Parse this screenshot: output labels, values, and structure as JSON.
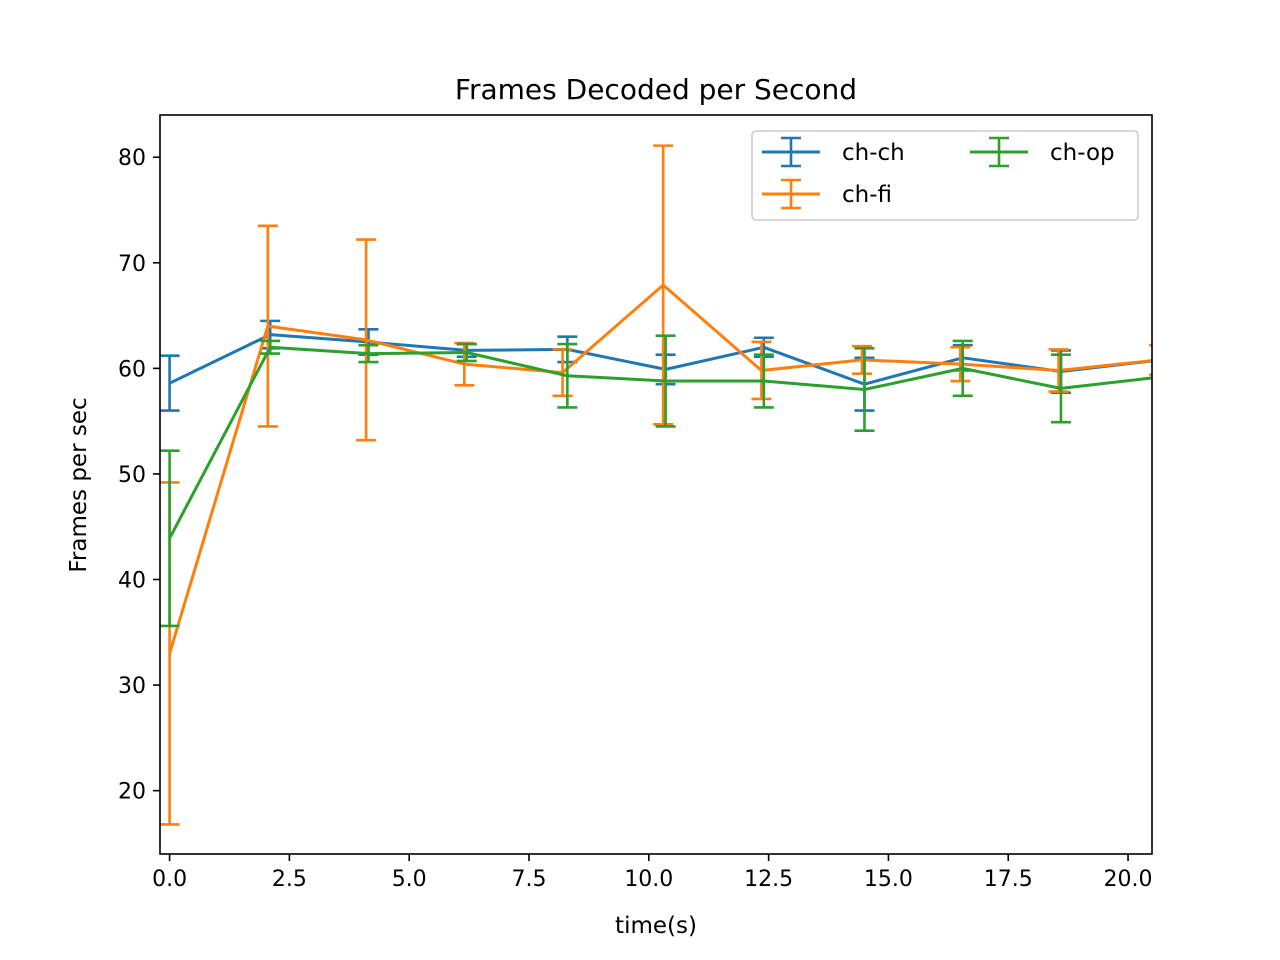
{
  "chart_data": {
    "type": "line",
    "title": "Frames Decoded per Second",
    "xlabel": "time(s)",
    "ylabel": "Frames per sec",
    "xlim": [
      -0.2,
      20.5
    ],
    "ylim": [
      14,
      84
    ],
    "xticks": [
      0.0,
      2.5,
      5.0,
      7.5,
      10.0,
      12.5,
      15.0,
      17.5,
      20.0
    ],
    "xtick_labels": [
      "0.0",
      "2.5",
      "5.0",
      "7.5",
      "10.0",
      "12.5",
      "15.0",
      "17.5",
      "20.0"
    ],
    "yticks": [
      20,
      30,
      40,
      50,
      60,
      70,
      80
    ],
    "ytick_labels": [
      "20",
      "30",
      "40",
      "50",
      "60",
      "70",
      "80"
    ],
    "grid": false,
    "legend": {
      "placement": "top-right",
      "columns": 2
    },
    "series": [
      {
        "name": "ch-ch",
        "color": "#1f77b4",
        "x": [
          0.0,
          2.1,
          4.15,
          6.2,
          8.3,
          10.35,
          12.4,
          14.5,
          16.55,
          18.6,
          20.7
        ],
        "y": [
          58.6,
          63.2,
          62.5,
          61.7,
          61.8,
          59.9,
          62.0,
          58.5,
          61.0,
          59.7,
          60.8
        ],
        "yerr": [
          2.6,
          1.3,
          1.2,
          0.6,
          1.2,
          1.4,
          0.9,
          2.5,
          1.2,
          2.0,
          1.4
        ]
      },
      {
        "name": "ch-fi",
        "color": "#ff7f0e",
        "x": [
          0.0,
          2.05,
          4.1,
          6.15,
          8.2,
          10.3,
          12.35,
          14.45,
          16.5,
          18.55,
          20.65
        ],
        "y": [
          33.0,
          64.0,
          62.7,
          60.4,
          59.6,
          67.9,
          59.8,
          60.8,
          60.4,
          59.8,
          60.8
        ],
        "yerr": [
          16.2,
          9.5,
          9.5,
          2.0,
          2.2,
          13.2,
          2.7,
          1.3,
          1.6,
          2.0,
          1.4
        ]
      },
      {
        "name": "ch-op",
        "color": "#2ca02c",
        "x": [
          0.0,
          2.1,
          4.15,
          6.2,
          8.3,
          10.35,
          12.4,
          14.5,
          16.55,
          18.6,
          20.7
        ],
        "y": [
          43.9,
          62.0,
          61.4,
          61.5,
          59.3,
          58.8,
          58.8,
          58.0,
          60.0,
          58.1,
          59.2
        ],
        "yerr": [
          8.3,
          0.6,
          0.8,
          0.8,
          3.0,
          4.3,
          2.5,
          3.9,
          2.6,
          3.2,
          2.8
        ]
      }
    ]
  }
}
